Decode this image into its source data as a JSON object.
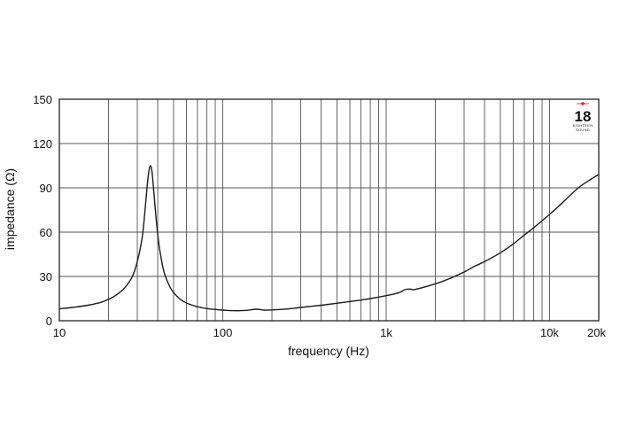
{
  "chart_data": {
    "type": "line",
    "title": "",
    "xlabel": "frequency (Hz)",
    "ylabel": "impedance (Ω)",
    "x_scale": "log",
    "xlim": [
      10,
      20000
    ],
    "ylim": [
      0,
      150
    ],
    "grid": true,
    "x_tick_labels": [
      {
        "value": 10,
        "label": "10"
      },
      {
        "value": 100,
        "label": "100"
      },
      {
        "value": 1000,
        "label": "1k"
      },
      {
        "value": 10000,
        "label": "10k"
      },
      {
        "value": 20000,
        "label": "20k"
      }
    ],
    "y_tick_labels": [
      {
        "value": 0,
        "label": "0"
      },
      {
        "value": 30,
        "label": "30"
      },
      {
        "value": 60,
        "label": "60"
      },
      {
        "value": 90,
        "label": "90"
      },
      {
        "value": 120,
        "label": "120"
      },
      {
        "value": 150,
        "label": "150"
      }
    ],
    "series": [
      {
        "color": "#1a1a1a",
        "x": [
          10,
          12,
          15,
          18,
          20,
          22,
          25,
          28,
          30,
          32,
          33,
          34,
          35,
          36,
          37,
          38,
          40,
          42,
          44,
          47,
          50,
          55,
          60,
          70,
          80,
          100,
          120,
          140,
          160,
          180,
          200,
          250,
          300,
          400,
          500,
          600,
          700,
          800,
          1000,
          1200,
          1300,
          1400,
          1500,
          2000,
          2500,
          3000,
          3500,
          4000,
          5000,
          6000,
          7000,
          8000,
          10000,
          12000,
          15000,
          18000,
          20000
        ],
        "y": [
          8,
          9,
          10.5,
          12.5,
          14.5,
          17,
          22,
          30,
          40,
          55,
          68,
          84,
          98,
          105,
          100,
          85,
          58,
          42,
          32,
          24,
          19,
          14.5,
          12,
          9.5,
          8.2,
          7.2,
          6.8,
          7,
          7.8,
          7.2,
          7.3,
          8,
          9,
          10.5,
          11.8,
          13,
          14,
          15,
          17,
          19,
          21,
          21.5,
          21.2,
          25,
          29,
          33,
          37,
          40,
          46,
          52,
          58,
          63,
          72,
          80,
          90,
          96,
          99
        ]
      }
    ]
  },
  "logo": {
    "brand_number": "18",
    "brand_line1": "EIGHTEEN",
    "brand_line2": "SOUND",
    "accent_color": "#e3242b"
  }
}
